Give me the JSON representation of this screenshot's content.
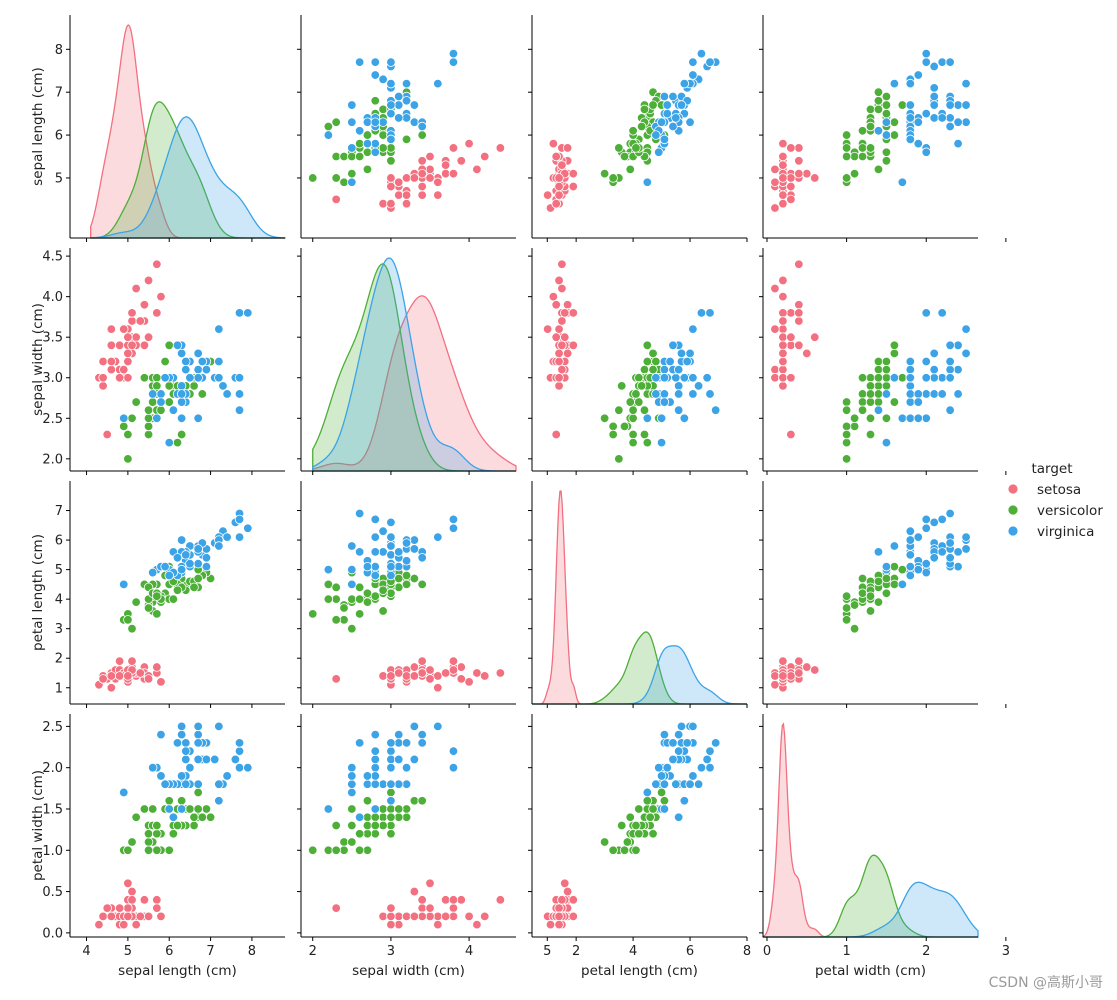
{
  "chart_data": {
    "type": "scatter",
    "title": "",
    "variables": [
      "sepal length (cm)",
      "sepal width (cm)",
      "petal length (cm)",
      "petal width (cm)"
    ],
    "axis_ranges": [
      [
        3.6,
        8.8
      ],
      [
        1.85,
        4.6
      ],
      [
        0.45,
        8.0
      ],
      [
        -0.05,
        2.65
      ]
    ],
    "axis_ticks": [
      [
        4,
        5,
        6,
        7,
        8
      ],
      [
        2,
        3,
        4,
        5
      ],
      [
        2,
        4,
        6,
        8
      ],
      [
        0,
        1,
        2,
        3
      ]
    ],
    "row_ticks": [
      [
        "5",
        "6",
        "7",
        "8"
      ],
      [
        "2.0",
        "2.5",
        "3.0",
        "3.5",
        "4.0",
        "4.5"
      ],
      [
        "1",
        "2",
        "3",
        "4",
        "5",
        "6",
        "7"
      ],
      [
        "0.0",
        "0.5",
        "1.0",
        "1.5",
        "2.0",
        "2.5"
      ]
    ],
    "row_tick_values": [
      [
        5,
        6,
        7,
        8
      ],
      [
        2.0,
        2.5,
        3.0,
        3.5,
        4.0,
        4.5
      ],
      [
        1,
        2,
        3,
        4,
        5,
        6,
        7
      ],
      [
        0.0,
        0.5,
        1.0,
        1.5,
        2.0,
        2.5
      ]
    ],
    "col_ticks": [
      [
        "4",
        "5",
        "6",
        "7",
        "8"
      ],
      [
        "2",
        "3",
        "4",
        "5"
      ],
      [
        "2",
        "4",
        "6",
        "8"
      ],
      [
        "0",
        "1",
        "2",
        "3"
      ]
    ],
    "diag_ranges": [
      [
        4.1,
        8.8
      ],
      [
        2.0,
        4.6
      ],
      [
        0.45,
        8.0
      ],
      [
        -0.05,
        2.65
      ]
    ],
    "grid": false,
    "legend": {
      "title": "target",
      "placement": "right",
      "entries": [
        {
          "name": "setosa",
          "color": "#f2707f"
        },
        {
          "name": "versicolor",
          "color": "#4daf37"
        },
        {
          "name": "virginica",
          "color": "#3ba3e6"
        }
      ]
    },
    "series": [
      {
        "name": "setosa",
        "color": "#f2707f",
        "sepal_length": [
          5.1,
          4.9,
          4.7,
          4.6,
          5.0,
          5.4,
          4.6,
          5.0,
          4.4,
          4.9,
          5.4,
          4.8,
          4.8,
          4.3,
          5.8,
          5.7,
          5.4,
          5.1,
          5.7,
          5.1,
          5.4,
          5.1,
          4.6,
          5.1,
          4.8,
          5.0,
          5.0,
          5.2,
          5.2,
          4.7,
          4.8,
          5.4,
          5.2,
          5.5,
          4.9,
          5.0,
          5.5,
          4.9,
          4.4,
          5.1,
          5.0,
          4.5,
          4.4,
          5.0,
          5.1,
          4.8,
          5.1,
          4.6,
          5.3,
          5.0
        ],
        "sepal_width": [
          3.5,
          3.0,
          3.2,
          3.1,
          3.6,
          3.9,
          3.4,
          3.4,
          2.9,
          3.1,
          3.7,
          3.4,
          3.0,
          3.0,
          4.0,
          4.4,
          3.9,
          3.5,
          3.8,
          3.8,
          3.4,
          3.7,
          3.6,
          3.3,
          3.4,
          3.0,
          3.4,
          3.5,
          3.4,
          3.2,
          3.1,
          3.4,
          4.1,
          4.2,
          3.1,
          3.2,
          3.5,
          3.6,
          3.0,
          3.4,
          3.5,
          2.3,
          3.2,
          3.5,
          3.8,
          3.0,
          3.8,
          3.2,
          3.7,
          3.3
        ],
        "petal_length": [
          1.4,
          1.4,
          1.3,
          1.5,
          1.4,
          1.7,
          1.4,
          1.5,
          1.4,
          1.5,
          1.5,
          1.6,
          1.4,
          1.1,
          1.2,
          1.5,
          1.3,
          1.4,
          1.7,
          1.5,
          1.7,
          1.5,
          1.0,
          1.7,
          1.9,
          1.6,
          1.6,
          1.5,
          1.4,
          1.6,
          1.6,
          1.5,
          1.5,
          1.4,
          1.5,
          1.2,
          1.3,
          1.4,
          1.3,
          1.5,
          1.3,
          1.3,
          1.3,
          1.6,
          1.9,
          1.4,
          1.6,
          1.4,
          1.5,
          1.4
        ],
        "petal_width": [
          0.2,
          0.2,
          0.2,
          0.2,
          0.2,
          0.4,
          0.3,
          0.2,
          0.2,
          0.1,
          0.2,
          0.2,
          0.1,
          0.1,
          0.2,
          0.4,
          0.4,
          0.3,
          0.3,
          0.3,
          0.2,
          0.4,
          0.2,
          0.5,
          0.2,
          0.2,
          0.4,
          0.2,
          0.2,
          0.2,
          0.2,
          0.4,
          0.1,
          0.2,
          0.2,
          0.2,
          0.2,
          0.1,
          0.2,
          0.2,
          0.3,
          0.3,
          0.2,
          0.6,
          0.4,
          0.3,
          0.2,
          0.2,
          0.2,
          0.2
        ]
      },
      {
        "name": "versicolor",
        "color": "#4daf37",
        "sepal_length": [
          7.0,
          6.4,
          6.9,
          5.5,
          6.5,
          5.7,
          6.3,
          4.9,
          6.6,
          5.2,
          5.0,
          5.9,
          6.0,
          6.1,
          5.6,
          6.7,
          5.6,
          5.8,
          6.2,
          5.6,
          5.9,
          6.1,
          6.3,
          6.1,
          6.4,
          6.6,
          6.8,
          6.7,
          6.0,
          5.7,
          5.5,
          5.5,
          5.8,
          6.0,
          5.4,
          6.0,
          6.7,
          6.3,
          5.6,
          5.5,
          5.5,
          6.1,
          5.8,
          5.0,
          5.6,
          5.7,
          5.7,
          6.2,
          5.1,
          5.7
        ],
        "sepal_width": [
          3.2,
          3.2,
          3.1,
          2.3,
          2.8,
          2.8,
          3.3,
          2.4,
          2.9,
          2.7,
          2.0,
          3.0,
          2.2,
          2.9,
          2.9,
          3.1,
          3.0,
          2.7,
          2.2,
          2.5,
          3.2,
          2.8,
          2.5,
          2.8,
          2.9,
          3.0,
          2.8,
          3.0,
          2.9,
          2.6,
          2.4,
          2.4,
          2.7,
          2.7,
          3.0,
          3.4,
          3.1,
          2.3,
          3.0,
          2.5,
          2.6,
          3.0,
          2.6,
          2.3,
          2.7,
          3.0,
          2.9,
          2.9,
          2.5,
          2.8
        ],
        "petal_length": [
          4.7,
          4.5,
          4.9,
          4.0,
          4.6,
          4.5,
          4.7,
          3.3,
          4.6,
          3.9,
          3.5,
          4.2,
          4.0,
          4.7,
          3.6,
          4.4,
          4.5,
          4.1,
          4.5,
          3.9,
          4.8,
          4.0,
          4.9,
          4.7,
          4.3,
          4.4,
          4.8,
          5.0,
          4.5,
          3.5,
          3.8,
          3.7,
          3.9,
          5.1,
          4.5,
          4.5,
          4.7,
          4.4,
          4.1,
          4.0,
          4.4,
          4.6,
          4.0,
          3.3,
          4.2,
          4.2,
          4.2,
          4.3,
          3.0,
          4.1
        ],
        "petal_width": [
          1.4,
          1.5,
          1.5,
          1.3,
          1.5,
          1.3,
          1.6,
          1.0,
          1.3,
          1.4,
          1.0,
          1.5,
          1.0,
          1.4,
          1.3,
          1.4,
          1.5,
          1.0,
          1.5,
          1.1,
          1.8,
          1.3,
          1.5,
          1.2,
          1.3,
          1.4,
          1.4,
          1.7,
          1.5,
          1.0,
          1.1,
          1.0,
          1.2,
          1.6,
          1.5,
          1.6,
          1.5,
          1.3,
          1.3,
          1.3,
          1.2,
          1.4,
          1.2,
          1.0,
          1.3,
          1.2,
          1.3,
          1.3,
          1.1,
          1.3
        ]
      },
      {
        "name": "virginica",
        "color": "#3ba3e6",
        "sepal_length": [
          6.3,
          5.8,
          7.1,
          6.3,
          6.5,
          7.6,
          4.9,
          7.3,
          6.7,
          7.2,
          6.5,
          6.4,
          6.8,
          5.7,
          5.8,
          6.4,
          6.5,
          7.7,
          7.7,
          6.0,
          6.9,
          5.6,
          7.7,
          6.3,
          6.7,
          7.2,
          6.2,
          6.1,
          6.4,
          7.2,
          7.4,
          7.9,
          6.4,
          6.3,
          6.1,
          7.7,
          6.3,
          6.4,
          6.0,
          6.9,
          6.7,
          6.9,
          5.8,
          6.8,
          6.7,
          6.7,
          6.3,
          6.5,
          6.2,
          5.9
        ],
        "sepal_width": [
          3.3,
          2.7,
          3.0,
          2.9,
          3.0,
          3.0,
          2.5,
          2.9,
          2.5,
          3.6,
          3.2,
          2.7,
          3.0,
          2.5,
          2.8,
          3.2,
          3.0,
          3.8,
          2.6,
          2.2,
          3.2,
          2.8,
          2.8,
          2.7,
          3.3,
          3.2,
          2.8,
          3.0,
          2.8,
          3.0,
          2.8,
          3.8,
          2.8,
          2.8,
          2.6,
          3.0,
          3.4,
          3.1,
          3.0,
          3.1,
          3.1,
          3.1,
          2.7,
          3.2,
          3.3,
          3.0,
          2.5,
          3.0,
          3.4,
          3.0
        ],
        "petal_length": [
          6.0,
          5.1,
          5.9,
          5.6,
          5.8,
          6.6,
          4.5,
          6.3,
          5.8,
          6.1,
          5.1,
          5.3,
          5.5,
          5.0,
          5.1,
          5.3,
          5.5,
          6.7,
          6.9,
          5.0,
          5.7,
          4.9,
          6.7,
          4.9,
          5.7,
          6.0,
          4.8,
          4.9,
          5.6,
          5.8,
          6.1,
          6.4,
          5.6,
          5.1,
          5.6,
          6.1,
          5.6,
          5.5,
          4.8,
          5.4,
          5.6,
          5.1,
          5.1,
          5.9,
          5.7,
          5.2,
          5.0,
          5.2,
          5.4,
          5.1
        ],
        "petal_width": [
          2.5,
          1.9,
          2.1,
          1.8,
          2.2,
          2.1,
          1.7,
          1.8,
          1.8,
          2.5,
          2.0,
          1.9,
          2.1,
          2.0,
          2.4,
          2.3,
          1.8,
          2.2,
          2.3,
          1.5,
          2.3,
          2.0,
          2.0,
          1.8,
          2.1,
          1.8,
          1.8,
          1.8,
          2.1,
          1.6,
          1.9,
          2.0,
          2.2,
          1.5,
          1.4,
          2.3,
          2.4,
          1.8,
          1.8,
          2.1,
          2.4,
          2.3,
          1.9,
          2.3,
          2.5,
          2.3,
          1.9,
          2.0,
          2.3,
          1.8
        ]
      }
    ]
  },
  "watermark": "CSDN @高斯小哥"
}
